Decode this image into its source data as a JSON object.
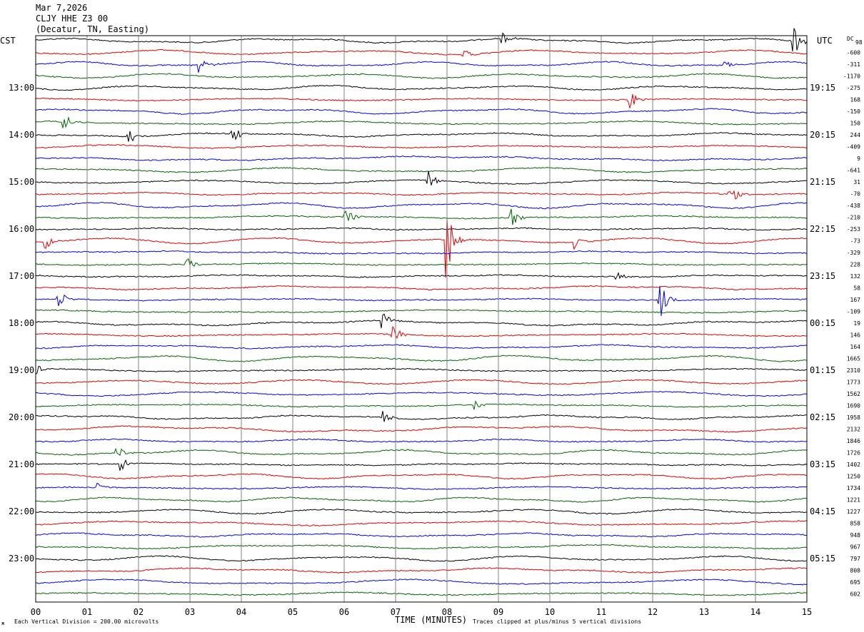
{
  "header": {
    "date": "Mar 7,2026",
    "station": "CLJY HHE Z3 00",
    "location": "(Decatur, TN, Easting)"
  },
  "left_tz": "CST",
  "right_tz": "UTC",
  "dc_label": "DC",
  "dc_top_value": "98",
  "footer": {
    "scale_note": "Each Vertical Division =  200.00 microvolts",
    "xlabel": "TIME (MINUTES)",
    "clip_note": "Traces clipped at plus/minus 5 vertical divisions",
    "corner_mark": "ж"
  },
  "colors": {
    "trace_cycle": [
      "#000000",
      "#e00000",
      "#0000e0",
      "#006400"
    ],
    "grid": "#808080"
  },
  "chart_data": {
    "type": "line",
    "x_range": [
      0,
      15
    ],
    "x_ticks": [
      "00",
      "01",
      "02",
      "03",
      "04",
      "05",
      "06",
      "07",
      "08",
      "09",
      "10",
      "11",
      "12",
      "13",
      "14",
      "15"
    ],
    "left_hour_labels": [
      "13:00",
      "14:00",
      "15:00",
      "16:00",
      "17:00",
      "18:00",
      "19:00",
      "20:00",
      "21:00",
      "22:00",
      "23:00"
    ],
    "right_hour_labels": [
      "19:15",
      "20:15",
      "21:15",
      "22:15",
      "23:15",
      "00:15",
      "01:15",
      "02:15",
      "03:15",
      "04:15",
      "05:15"
    ],
    "dc_offsets": [
      "-600",
      "-311",
      "-1170",
      "-275",
      "168",
      "-150",
      "150",
      "244",
      "-409",
      "9",
      "-641",
      "31",
      "-70",
      "-438",
      "-210",
      "-253",
      "-73",
      "-329",
      "228",
      "132",
      "58",
      "167",
      "-109",
      "19",
      "146",
      "164",
      "1665",
      "2310",
      "1773",
      "1562",
      "1690",
      "1958",
      "2132",
      "1846",
      "1726",
      "1402",
      "1250",
      "1734",
      "1221",
      "1227",
      "858",
      "948",
      "967",
      "797",
      "808",
      "695",
      "602"
    ],
    "trace_count": 48,
    "events": [
      {
        "trace": 0,
        "minute": 14.75,
        "amp": 2.0
      },
      {
        "trace": 0,
        "minute": 9.1,
        "amp": 0.6
      },
      {
        "trace": 1,
        "minute": 8.35,
        "amp": 0.6
      },
      {
        "trace": 2,
        "minute": 3.2,
        "amp": 1.0
      },
      {
        "trace": 2,
        "minute": 13.4,
        "amp": 0.6
      },
      {
        "trace": 5,
        "minute": 11.55,
        "amp": 1.1
      },
      {
        "trace": 7,
        "minute": 0.55,
        "amp": 1.2
      },
      {
        "trace": 8,
        "minute": 1.8,
        "amp": 0.9
      },
      {
        "trace": 8,
        "minute": 3.85,
        "amp": 0.9
      },
      {
        "trace": 12,
        "minute": 7.65,
        "amp": 1.0
      },
      {
        "trace": 13,
        "minute": 13.5,
        "amp": 1.4
      },
      {
        "trace": 15,
        "minute": 6.05,
        "amp": 1.1
      },
      {
        "trace": 15,
        "minute": 9.25,
        "amp": 1.0
      },
      {
        "trace": 17,
        "minute": 8.0,
        "amp": 4.5
      },
      {
        "trace": 17,
        "minute": 0.2,
        "amp": 0.8
      },
      {
        "trace": 17,
        "minute": 10.5,
        "amp": 0.8
      },
      {
        "trace": 19,
        "minute": 2.95,
        "amp": 1.0
      },
      {
        "trace": 20,
        "minute": 11.3,
        "amp": 0.8
      },
      {
        "trace": 22,
        "minute": 0.45,
        "amp": 1.2
      },
      {
        "trace": 22,
        "minute": 12.15,
        "amp": 2.4
      },
      {
        "trace": 24,
        "minute": 6.75,
        "amp": 1.0
      },
      {
        "trace": 25,
        "minute": 6.95,
        "amp": 1.2
      },
      {
        "trace": 28,
        "minute": 0.0,
        "amp": 0.6
      },
      {
        "trace": 31,
        "minute": 8.55,
        "amp": 0.7
      },
      {
        "trace": 32,
        "minute": 6.75,
        "amp": 0.8
      },
      {
        "trace": 35,
        "minute": 1.6,
        "amp": 0.8
      },
      {
        "trace": 36,
        "minute": 1.65,
        "amp": 0.8
      },
      {
        "trace": 38,
        "minute": 1.2,
        "amp": 0.7
      }
    ]
  }
}
